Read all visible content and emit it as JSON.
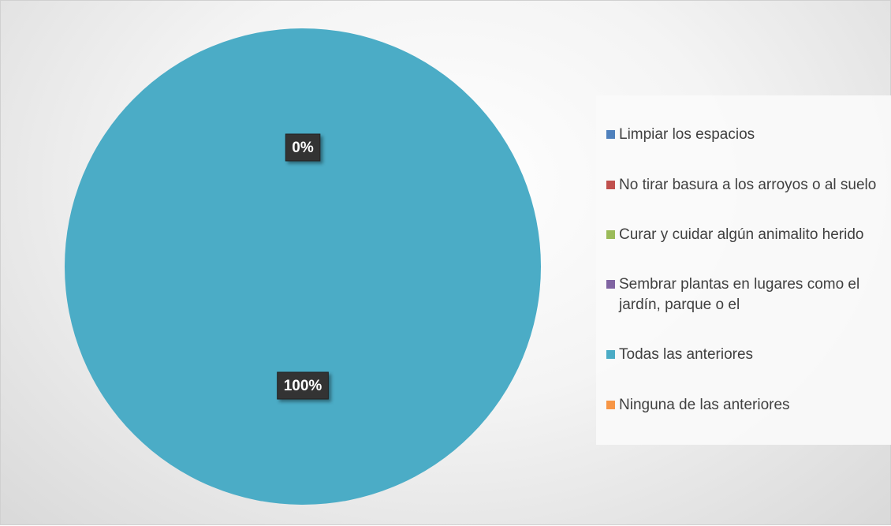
{
  "chart_data": {
    "type": "pie",
    "categories": [
      "Limpiar los espacios",
      "No tirar basura a los arroyos o al suelo",
      "Curar y cuidar algún animalito herido",
      "Sembrar plantas en lugares como el jardín, parque o el",
      "Todas las anteriores",
      "Ninguna de las anteriores"
    ],
    "values": [
      0,
      0,
      0,
      0,
      100,
      0
    ],
    "value_labels": [
      "0%",
      null,
      null,
      null,
      "100%",
      null
    ],
    "colors": [
      "#4f81bd",
      "#c0504d",
      "#9bbb59",
      "#8064a2",
      "#4bacc6",
      "#f79646"
    ],
    "legend": "right"
  }
}
